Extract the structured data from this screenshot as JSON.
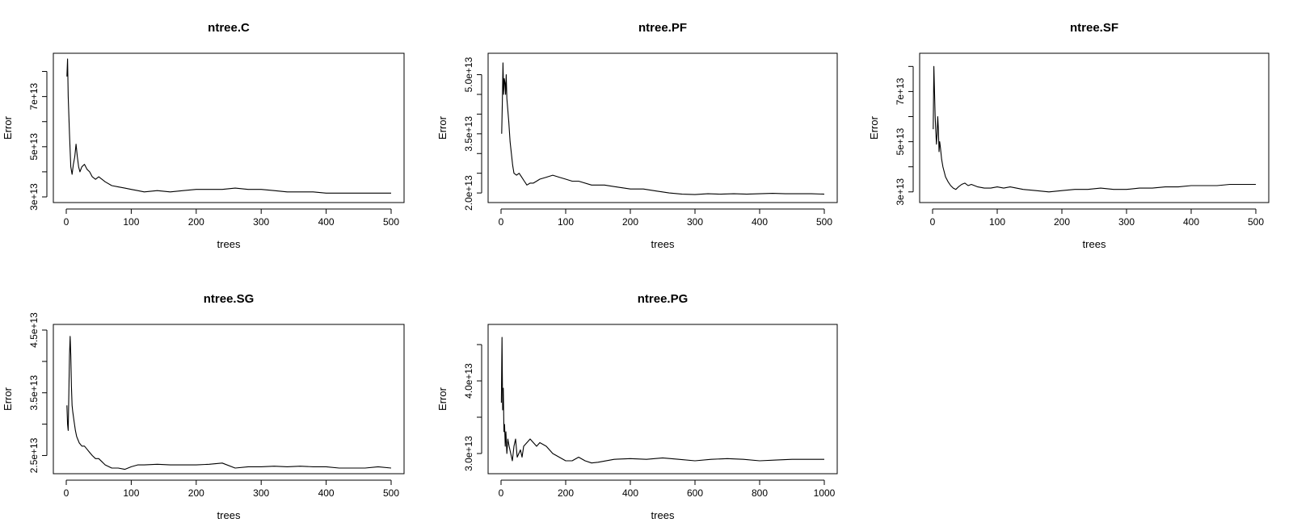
{
  "chart_data": [
    {
      "type": "line",
      "title": "ntree.C",
      "xlabel": "trees",
      "ylabel": "Error",
      "xlim": [
        0,
        500
      ],
      "ylim": [
        30000000000000.0,
        85000000000000.0
      ],
      "xticks": [
        0,
        100,
        200,
        300,
        400,
        500
      ],
      "xtick_labels": [
        "0",
        "100",
        "200",
        "300",
        "400",
        "500"
      ],
      "yticks": [
        30000000000000.0,
        50000000000000.0,
        70000000000000.0
      ],
      "ytick_labels": [
        "3e+13",
        "5e+13",
        "7e+13"
      ],
      "yminor": [
        40000000000000.0,
        60000000000000.0,
        80000000000000.0
      ],
      "x": [
        1,
        2,
        3,
        5,
        7,
        9,
        11,
        13,
        15,
        17,
        19,
        21,
        24,
        28,
        32,
        36,
        40,
        45,
        50,
        55,
        60,
        70,
        80,
        90,
        100,
        110,
        120,
        140,
        160,
        180,
        200,
        220,
        240,
        260,
        280,
        300,
        320,
        340,
        360,
        380,
        400,
        420,
        440,
        460,
        480,
        500
      ],
      "y": [
        78000000000000.0,
        85000000000000.0,
        70000000000000.0,
        55000000000000.0,
        42000000000000.0,
        39000000000000.0,
        43000000000000.0,
        46000000000000.0,
        51000000000000.0,
        46000000000000.0,
        42000000000000.0,
        40000000000000.0,
        42000000000000.0,
        43000000000000.0,
        41000000000000.0,
        40000000000000.0,
        38000000000000.0,
        37000000000000.0,
        38000000000000.0,
        37000000000000.0,
        36000000000000.0,
        34500000000000.0,
        34000000000000.0,
        33500000000000.0,
        33000000000000.0,
        32500000000000.0,
        32000000000000.0,
        32500000000000.0,
        32000000000000.0,
        32500000000000.0,
        33000000000000.0,
        33000000000000.0,
        33000000000000.0,
        33500000000000.0,
        33000000000000.0,
        33000000000000.0,
        32500000000000.0,
        32000000000000.0,
        32000000000000.0,
        32000000000000.0,
        31500000000000.0,
        31500000000000.0,
        31500000000000.0,
        31500000000000.0,
        31500000000000.0,
        31500000000000.0
      ]
    },
    {
      "type": "line",
      "title": "ntree.PF",
      "xlabel": "trees",
      "ylabel": "Error",
      "xlim": [
        0,
        500
      ],
      "ylim": [
        19000000000000.0,
        54000000000000.0
      ],
      "xticks": [
        0,
        100,
        200,
        300,
        400,
        500
      ],
      "xtick_labels": [
        "0",
        "100",
        "200",
        "300",
        "400",
        "500"
      ],
      "yticks": [
        20000000000000.0,
        35000000000000.0,
        50000000000000.0
      ],
      "ytick_labels": [
        "2.0e+13",
        "3.5e+13",
        "5.0e+13"
      ],
      "yminor": [
        25000000000000.0,
        30000000000000.0,
        40000000000000.0,
        45000000000000.0
      ],
      "x": [
        1,
        2,
        3,
        4,
        5,
        6,
        7,
        8,
        9,
        10,
        12,
        14,
        16,
        18,
        20,
        24,
        28,
        32,
        36,
        40,
        45,
        50,
        55,
        60,
        70,
        80,
        90,
        100,
        110,
        120,
        140,
        160,
        180,
        200,
        220,
        240,
        260,
        280,
        300,
        320,
        340,
        360,
        380,
        400,
        420,
        440,
        460,
        480,
        500
      ],
      "y": [
        35000000000000.0,
        43000000000000.0,
        53000000000000.0,
        45000000000000.0,
        49000000000000.0,
        48000000000000.0,
        45000000000000.0,
        50000000000000.0,
        44000000000000.0,
        42000000000000.0,
        38000000000000.0,
        33000000000000.0,
        30000000000000.0,
        27000000000000.0,
        25000000000000.0,
        24500000000000.0,
        25000000000000.0,
        24000000000000.0,
        23000000000000.0,
        22000000000000.0,
        22500000000000.0,
        22500000000000.0,
        23000000000000.0,
        23500000000000.0,
        24000000000000.0,
        24500000000000.0,
        24000000000000.0,
        23500000000000.0,
        23000000000000.0,
        23000000000000.0,
        22000000000000.0,
        22000000000000.0,
        21500000000000.0,
        21000000000000.0,
        21000000000000.0,
        20500000000000.0,
        20000000000000.0,
        19700000000000.0,
        19600000000000.0,
        19800000000000.0,
        19700000000000.0,
        19800000000000.0,
        19700000000000.0,
        19800000000000.0,
        19900000000000.0,
        19800000000000.0,
        19800000000000.0,
        19800000000000.0,
        19700000000000.0
      ]
    },
    {
      "type": "line",
      "title": "ntree.SF",
      "xlabel": "trees",
      "ylabel": "Error",
      "xlim": [
        0,
        500
      ],
      "ylim": [
        28000000000000.0,
        83000000000000.0
      ],
      "xticks": [
        0,
        100,
        200,
        300,
        400,
        500
      ],
      "xtick_labels": [
        "0",
        "100",
        "200",
        "300",
        "400",
        "500"
      ],
      "yticks": [
        30000000000000.0,
        50000000000000.0,
        70000000000000.0
      ],
      "ytick_labels": [
        "3e+13",
        "5e+13",
        "7e+13"
      ],
      "yminor": [
        40000000000000.0,
        60000000000000.0,
        80000000000000.0
      ],
      "x": [
        1,
        2,
        3,
        4,
        5,
        6,
        7,
        8,
        9,
        10,
        11,
        12,
        14,
        16,
        18,
        20,
        24,
        28,
        32,
        36,
        40,
        45,
        50,
        55,
        60,
        70,
        80,
        90,
        100,
        110,
        120,
        140,
        160,
        180,
        200,
        220,
        240,
        260,
        280,
        300,
        320,
        340,
        360,
        380,
        400,
        420,
        440,
        460,
        480,
        500
      ],
      "y": [
        55000000000000.0,
        80000000000000.0,
        70000000000000.0,
        60000000000000.0,
        54000000000000.0,
        49000000000000.0,
        53000000000000.0,
        60000000000000.0,
        55000000000000.0,
        46000000000000.0,
        50000000000000.0,
        48000000000000.0,
        43000000000000.0,
        40000000000000.0,
        38000000000000.0,
        36000000000000.0,
        34000000000000.0,
        32500000000000.0,
        31500000000000.0,
        31000000000000.0,
        32000000000000.0,
        33000000000000.0,
        33500000000000.0,
        32500000000000.0,
        33000000000000.0,
        32000000000000.0,
        31500000000000.0,
        31500000000000.0,
        32000000000000.0,
        31500000000000.0,
        32000000000000.0,
        31000000000000.0,
        30500000000000.0,
        30000000000000.0,
        30500000000000.0,
        31000000000000.0,
        31000000000000.0,
        31500000000000.0,
        31000000000000.0,
        31000000000000.0,
        31500000000000.0,
        31500000000000.0,
        32000000000000.0,
        32000000000000.0,
        32500000000000.0,
        32500000000000.0,
        32500000000000.0,
        33000000000000.0,
        33000000000000.0,
        33000000000000.0
      ]
    },
    {
      "type": "line",
      "title": "ntree.SG",
      "xlabel": "trees",
      "ylabel": "Error",
      "xlim": [
        0,
        500
      ],
      "ylim": [
        23000000000000.0,
        45000000000000.0
      ],
      "xticks": [
        0,
        100,
        200,
        300,
        400,
        500
      ],
      "xtick_labels": [
        "0",
        "100",
        "200",
        "300",
        "400",
        "500"
      ],
      "yticks": [
        25000000000000.0,
        35000000000000.0,
        45000000000000.0
      ],
      "ytick_labels": [
        "2.5e+13",
        "3.5e+13",
        "4.5e+13"
      ],
      "yminor": [
        30000000000000.0,
        40000000000000.0
      ],
      "x": [
        1,
        2,
        3,
        4,
        5,
        6,
        7,
        8,
        9,
        10,
        12,
        14,
        16,
        18,
        20,
        24,
        28,
        32,
        36,
        40,
        45,
        50,
        55,
        60,
        70,
        80,
        90,
        100,
        110,
        120,
        140,
        160,
        180,
        200,
        220,
        240,
        260,
        280,
        300,
        320,
        340,
        360,
        380,
        400,
        420,
        440,
        460,
        480,
        500
      ],
      "y": [
        33000000000000.0,
        30000000000000.0,
        29000000000000.0,
        35000000000000.0,
        41000000000000.0,
        44000000000000.0,
        41000000000000.0,
        36000000000000.0,
        33000000000000.0,
        32000000000000.0,
        30500000000000.0,
        29000000000000.0,
        28000000000000.0,
        27500000000000.0,
        27000000000000.0,
        26500000000000.0,
        26500000000000.0,
        26000000000000.0,
        25500000000000.0,
        25000000000000.0,
        24500000000000.0,
        24500000000000.0,
        24000000000000.0,
        23500000000000.0,
        23000000000000.0,
        23000000000000.0,
        22800000000000.0,
        23200000000000.0,
        23500000000000.0,
        23500000000000.0,
        23600000000000.0,
        23500000000000.0,
        23500000000000.0,
        23500000000000.0,
        23600000000000.0,
        23800000000000.0,
        23000000000000.0,
        23200000000000.0,
        23200000000000.0,
        23300000000000.0,
        23200000000000.0,
        23300000000000.0,
        23200000000000.0,
        23200000000000.0,
        23000000000000.0,
        23000000000000.0,
        23000000000000.0,
        23200000000000.0,
        23000000000000.0
      ]
    },
    {
      "type": "line",
      "title": "ntree.PG",
      "xlabel": "trees",
      "ylabel": "Error",
      "xlim": [
        0,
        1000
      ],
      "ylim": [
        28000000000000.0,
        47000000000000.0
      ],
      "xticks": [
        0,
        200,
        400,
        600,
        800,
        1000
      ],
      "xtick_labels": [
        "0",
        "200",
        "400",
        "600",
        "800",
        "1000"
      ],
      "yticks": [
        30000000000000.0,
        40000000000000.0
      ],
      "ytick_labels": [
        "3.0e+13",
        "4.0e+13"
      ],
      "yminor": [
        35000000000000.0,
        45000000000000.0
      ],
      "x": [
        1,
        3,
        5,
        7,
        9,
        11,
        13,
        15,
        18,
        21,
        25,
        30,
        35,
        40,
        45,
        50,
        55,
        60,
        65,
        70,
        80,
        90,
        100,
        110,
        120,
        140,
        160,
        180,
        200,
        220,
        240,
        260,
        280,
        300,
        350,
        400,
        450,
        500,
        550,
        600,
        650,
        700,
        750,
        800,
        850,
        900,
        950,
        1000
      ],
      "y": [
        37000000000000.0,
        46000000000000.0,
        36000000000000.0,
        39000000000000.0,
        33000000000000.0,
        34000000000000.0,
        31000000000000.0,
        33000000000000.0,
        30000000000000.0,
        32000000000000.0,
        31000000000000.0,
        30000000000000.0,
        29000000000000.0,
        31000000000000.0,
        32000000000000.0,
        29500000000000.0,
        30000000000000.0,
        30500000000000.0,
        29500000000000.0,
        31000000000000.0,
        31500000000000.0,
        32000000000000.0,
        31500000000000.0,
        31000000000000.0,
        31500000000000.0,
        31000000000000.0,
        30000000000000.0,
        29500000000000.0,
        29000000000000.0,
        29000000000000.0,
        29500000000000.0,
        29000000000000.0,
        28700000000000.0,
        28800000000000.0,
        29200000000000.0,
        29300000000000.0,
        29200000000000.0,
        29400000000000.0,
        29200000000000.0,
        29000000000000.0,
        29200000000000.0,
        29300000000000.0,
        29200000000000.0,
        29000000000000.0,
        29100000000000.0,
        29200000000000.0,
        29200000000000.0,
        29200000000000.0
      ]
    }
  ]
}
